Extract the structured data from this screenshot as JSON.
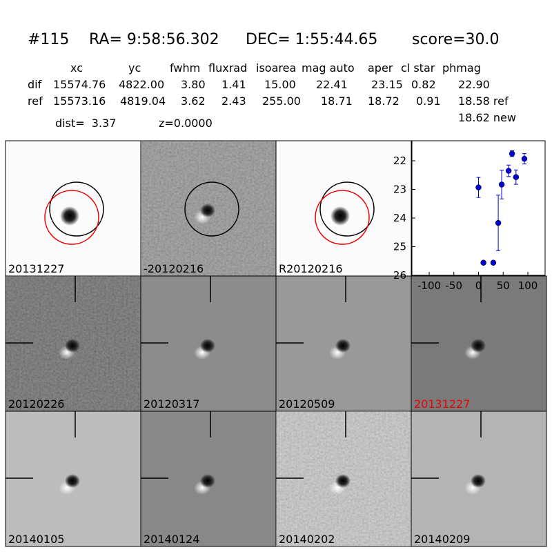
{
  "header": {
    "id": "#115",
    "ra": "RA= 9:58:56.302",
    "dec": "DEC= 1:55:44.65",
    "score": "score=30.0"
  },
  "table": {
    "columns": [
      "xc",
      "yc",
      "fwhm",
      "fluxrad",
      "isoarea",
      "mag auto",
      "aper",
      "cl star",
      "phmag"
    ],
    "rows": [
      [
        "dif",
        "15574.76",
        "4822.00",
        "3.80",
        "1.41",
        "15.00",
        "22.41",
        "23.15",
        "0.82",
        "22.90"
      ],
      [
        "ref",
        "15573.16",
        "4819.04",
        "3.62",
        "2.43",
        "255.00",
        "18.71",
        "18.72",
        "0.91",
        "18.58 ref"
      ]
    ],
    "new_phmag": "18.62 new"
  },
  "summary": {
    "dist": "dist=  3.37",
    "z": "z=0.0000"
  },
  "panels": [
    "20131227",
    "-20120216",
    "R20120216",
    "20120226",
    "20120317",
    "20120509",
    "20131227",
    "20140105",
    "20140124",
    "20140202",
    "20140209"
  ],
  "chart_data": {
    "type": "scatter",
    "color": "#0000cc",
    "x": [
      0,
      10,
      30,
      40,
      47,
      68,
      61,
      76,
      93
    ],
    "values": [
      22.93,
      25.56,
      25.56,
      24.17,
      22.83,
      21.75,
      22.35,
      22.57,
      21.93
    ],
    "errors": [
      0.35,
      0.05,
      0.05,
      0.97,
      0.5,
      0.1,
      0.2,
      0.25,
      0.18
    ],
    "xlim": [
      -135,
      135
    ],
    "ylim": [
      26,
      21.3
    ],
    "xticks": [
      -100,
      -50,
      0,
      50,
      100
    ],
    "yticks": [
      22,
      23,
      24,
      25,
      26
    ]
  }
}
